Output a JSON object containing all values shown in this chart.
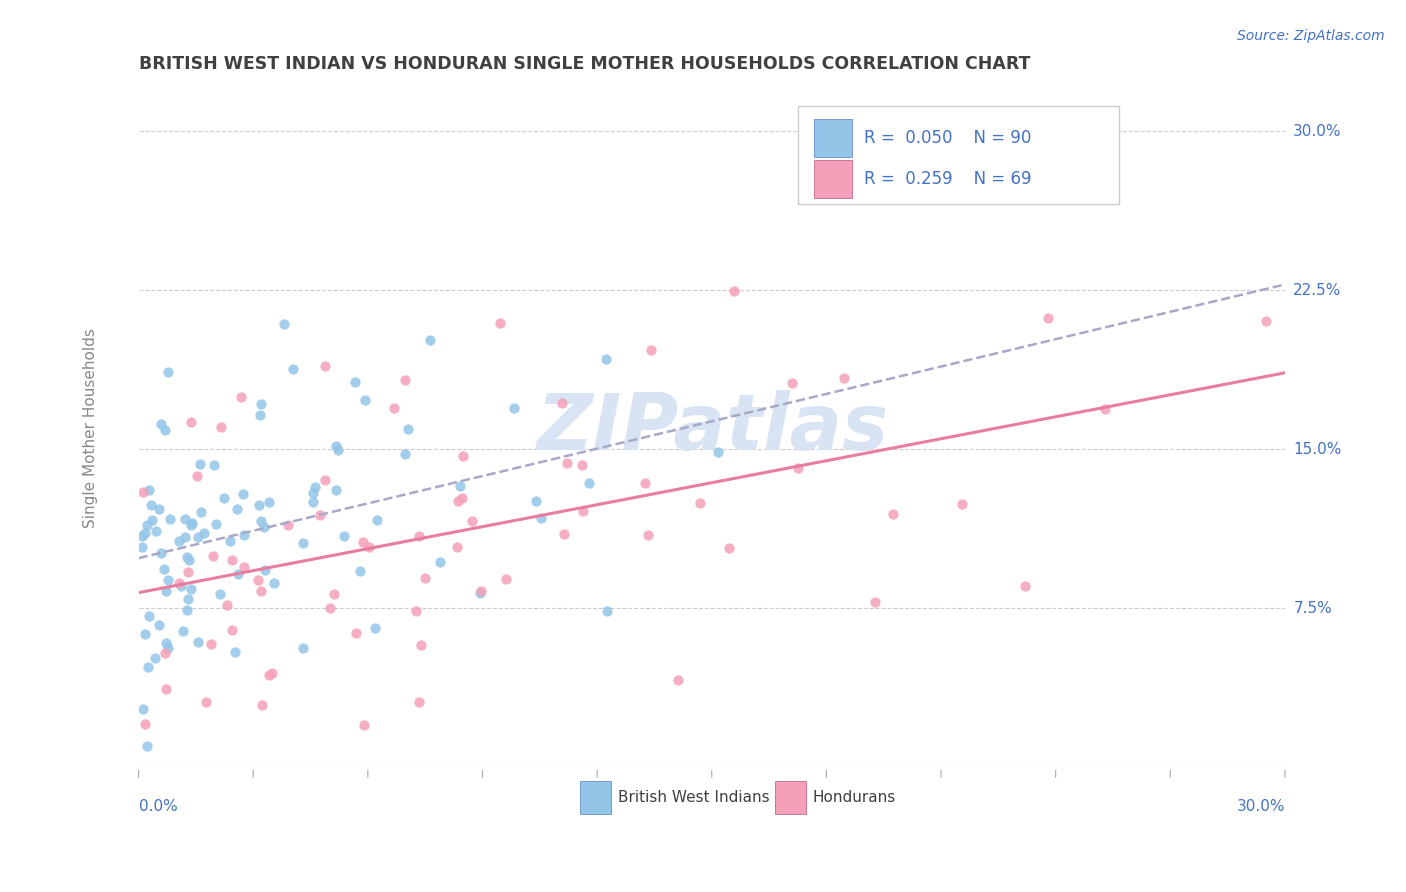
{
  "title": "BRITISH WEST INDIAN VS HONDURAN SINGLE MOTHER HOUSEHOLDS CORRELATION CHART",
  "source": "Source: ZipAtlas.com",
  "ylabel": "Single Mother Households",
  "legend_r1": "R = 0.050",
  "legend_n1": "N = 90",
  "legend_r2": "R = 0.259",
  "legend_n2": "N = 69",
  "color_blue": "#92C5E8",
  "color_pink": "#F4A0B8",
  "color_line_blue": "#A8A8C8",
  "color_line_pink": "#E87DA0",
  "color_axis": "#4472C4",
  "color_title": "#404040",
  "color_grid": "#CCCCCC",
  "color_ylabel": "#888888",
  "watermark_color": "#D8E4F4",
  "legend_label1": "British West Indians",
  "legend_label2": "Hondurans",
  "xlim": [
    0.0,
    0.3
  ],
  "ylim": [
    0.0,
    0.32
  ],
  "ytick_vals": [
    0.075,
    0.15,
    0.225,
    0.3
  ],
  "ytick_labels": [
    "7.5%",
    "15.0%",
    "22.5%",
    "30.0%"
  ],
  "seed": 42
}
